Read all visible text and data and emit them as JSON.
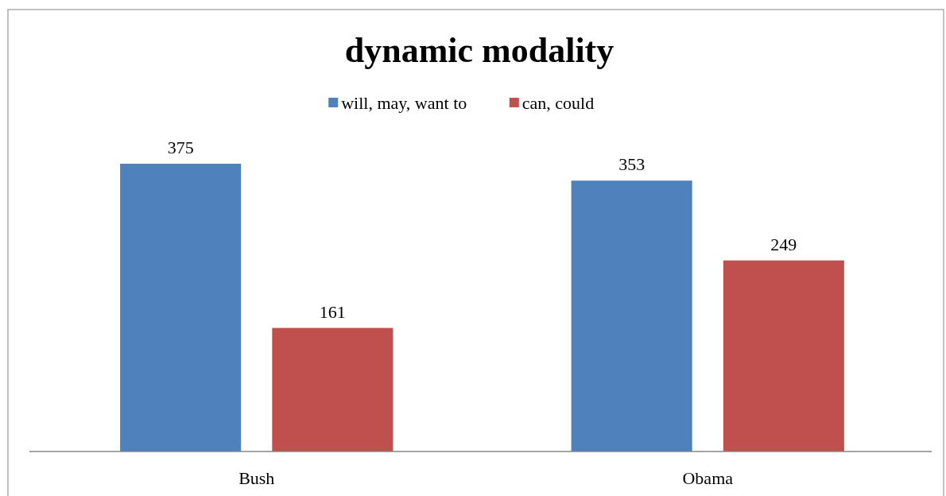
{
  "chart_data": {
    "type": "bar",
    "title": "dynamic modality",
    "categories": [
      "Bush",
      "Obama"
    ],
    "series": [
      {
        "name": "will, may, want to",
        "color": "#4f81bd",
        "values": [
          375,
          353
        ]
      },
      {
        "name": "can, could",
        "color": "#c0504d",
        "values": [
          161,
          249
        ]
      }
    ],
    "data_labels": true,
    "legend": "top"
  }
}
